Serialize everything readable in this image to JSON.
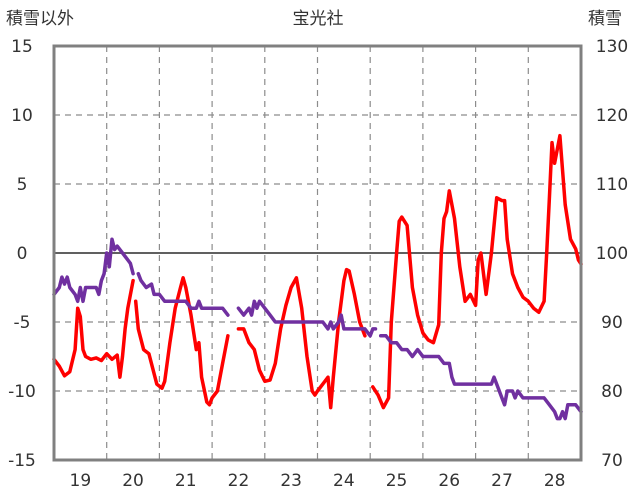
{
  "chart_data": {
    "type": "line",
    "title": "宝光社",
    "y_left_label": "積雪以外",
    "y_right_label": "積雪",
    "x_ticks": [
      "19",
      "20",
      "21",
      "22",
      "23",
      "24",
      "25",
      "26",
      "27",
      "28"
    ],
    "x_range": [
      18.5,
      28.5
    ],
    "y_left_range": [
      -15,
      15
    ],
    "y_left_ticks": [
      "15",
      "10",
      "5",
      "0",
      "-5",
      "-10",
      "-15"
    ],
    "y_right_range": [
      70,
      130
    ],
    "y_right_ticks": [
      "130",
      "120",
      "110",
      "100",
      "90",
      "80",
      "70"
    ],
    "grid": {
      "vertical": "dashed",
      "horizontal": "dashed",
      "zero_line": "solid"
    },
    "series": [
      {
        "axis": "left",
        "color": "#ff0000",
        "segments": [
          [
            [
              18.5,
              -7.7
            ],
            [
              18.6,
              -8.2
            ],
            [
              18.7,
              -8.9
            ],
            [
              18.8,
              -8.6
            ],
            [
              18.9,
              -7.0
            ],
            [
              18.95,
              -4.0
            ],
            [
              19.0,
              -4.6
            ],
            [
              19.05,
              -7.0
            ],
            [
              19.1,
              -7.5
            ],
            [
              19.2,
              -7.7
            ],
            [
              19.3,
              -7.6
            ],
            [
              19.4,
              -7.8
            ],
            [
              19.5,
              -7.3
            ],
            [
              19.6,
              -7.7
            ],
            [
              19.7,
              -7.4
            ],
            [
              19.75,
              -9.0
            ],
            [
              19.8,
              -7.5
            ],
            [
              19.85,
              -5.5
            ],
            [
              19.9,
              -4.0
            ],
            [
              20.0,
              -2.0
            ]
          ],
          [
            [
              20.05,
              -3.5
            ],
            [
              20.1,
              -5.5
            ],
            [
              20.2,
              -7.0
            ],
            [
              20.3,
              -7.3
            ],
            [
              20.45,
              -9.5
            ],
            [
              20.55,
              -9.8
            ],
            [
              20.6,
              -9.3
            ],
            [
              20.7,
              -6.5
            ],
            [
              20.8,
              -4.0
            ],
            [
              20.9,
              -2.5
            ],
            [
              20.95,
              -1.8
            ],
            [
              21.0,
              -2.5
            ],
            [
              21.1,
              -4.5
            ],
            [
              21.2,
              -7.0
            ],
            [
              21.25,
              -6.5
            ],
            [
              21.3,
              -9.0
            ],
            [
              21.4,
              -10.8
            ],
            [
              21.45,
              -11.0
            ],
            [
              21.5,
              -10.5
            ],
            [
              21.6,
              -10.0
            ],
            [
              21.7,
              -8.0
            ],
            [
              21.8,
              -6.0
            ]
          ],
          [
            [
              22.0,
              -5.5
            ],
            [
              22.1,
              -5.5
            ],
            [
              22.2,
              -6.5
            ],
            [
              22.3,
              -7.0
            ],
            [
              22.4,
              -8.5
            ],
            [
              22.5,
              -9.3
            ],
            [
              22.6,
              -9.2
            ],
            [
              22.7,
              -8.0
            ],
            [
              22.8,
              -5.5
            ],
            [
              22.9,
              -3.8
            ],
            [
              23.0,
              -2.5
            ],
            [
              23.1,
              -1.8
            ],
            [
              23.2,
              -4.0
            ],
            [
              23.3,
              -7.5
            ],
            [
              23.4,
              -10.0
            ],
            [
              23.45,
              -10.3
            ],
            [
              23.5,
              -10.0
            ],
            [
              23.6,
              -9.5
            ],
            [
              23.7,
              -9.0
            ],
            [
              23.75,
              -11.2
            ],
            [
              23.8,
              -9.0
            ],
            [
              23.9,
              -5.0
            ],
            [
              24.0,
              -2.0
            ],
            [
              24.05,
              -1.2
            ],
            [
              24.1,
              -1.3
            ],
            [
              24.2,
              -3.0
            ],
            [
              24.3,
              -5.0
            ],
            [
              24.4,
              -6.0
            ]
          ],
          [
            [
              24.55,
              -9.7
            ],
            [
              24.65,
              -10.3
            ],
            [
              24.75,
              -11.2
            ],
            [
              24.85,
              -10.5
            ],
            [
              24.9,
              -5.0
            ],
            [
              25.0,
              0.0
            ],
            [
              25.05,
              2.3
            ],
            [
              25.1,
              2.6
            ],
            [
              25.2,
              2.0
            ],
            [
              25.3,
              -2.5
            ],
            [
              25.4,
              -4.5
            ],
            [
              25.5,
              -5.8
            ],
            [
              25.6,
              -6.3
            ],
            [
              25.7,
              -6.5
            ],
            [
              25.8,
              -5.2
            ],
            [
              25.85,
              0.0
            ],
            [
              25.9,
              2.5
            ],
            [
              25.95,
              3.0
            ],
            [
              26.0,
              4.5
            ],
            [
              26.1,
              2.5
            ],
            [
              26.2,
              -1.0
            ],
            [
              26.3,
              -3.5
            ],
            [
              26.4,
              -3.0
            ],
            [
              26.5,
              -3.8
            ],
            [
              26.55,
              -0.5
            ],
            [
              26.6,
              0.0
            ],
            [
              26.7,
              -3.0
            ],
            [
              26.8,
              0.0
            ],
            [
              26.9,
              4.0
            ],
            [
              27.0,
              3.8
            ],
            [
              27.05,
              3.8
            ],
            [
              27.1,
              1.0
            ],
            [
              27.2,
              -1.5
            ],
            [
              27.3,
              -2.5
            ],
            [
              27.4,
              -3.2
            ],
            [
              27.5,
              -3.5
            ],
            [
              27.6,
              -4.0
            ],
            [
              27.7,
              -4.3
            ],
            [
              27.8,
              -3.5
            ],
            [
              27.85,
              0.0
            ],
            [
              27.9,
              4.0
            ],
            [
              27.95,
              8.0
            ],
            [
              28.0,
              6.5
            ],
            [
              28.1,
              8.5
            ],
            [
              28.2,
              3.5
            ],
            [
              28.3,
              1.0
            ],
            [
              28.4,
              0.3
            ],
            [
              28.45,
              -0.5
            ],
            [
              28.5,
              -0.8
            ]
          ]
        ]
      },
      {
        "axis": "right",
        "color": "#7030a0",
        "segments": [
          [
            [
              18.5,
              94
            ],
            [
              18.6,
              95
            ],
            [
              18.65,
              96.5
            ],
            [
              18.7,
              95.5
            ],
            [
              18.75,
              96.5
            ],
            [
              18.8,
              95
            ],
            [
              18.9,
              94
            ],
            [
              18.95,
              93
            ],
            [
              19.0,
              95
            ],
            [
              19.05,
              93
            ],
            [
              19.1,
              95
            ],
            [
              19.2,
              95
            ],
            [
              19.3,
              95
            ],
            [
              19.35,
              94
            ],
            [
              19.4,
              96
            ],
            [
              19.45,
              97
            ],
            [
              19.5,
              100
            ],
            [
              19.55,
              98
            ],
            [
              19.6,
              102
            ],
            [
              19.65,
              100.5
            ],
            [
              19.7,
              101
            ],
            [
              19.8,
              100
            ],
            [
              19.9,
              99
            ],
            [
              19.95,
              98.5
            ],
            [
              20.0,
              97
            ]
          ],
          [
            [
              20.1,
              97
            ],
            [
              20.15,
              96
            ],
            [
              20.25,
              95
            ],
            [
              20.35,
              95.5
            ],
            [
              20.4,
              94
            ],
            [
              20.5,
              94
            ],
            [
              20.6,
              93
            ],
            [
              20.7,
              93
            ],
            [
              20.8,
              93
            ],
            [
              20.9,
              93
            ],
            [
              21.0,
              93
            ],
            [
              21.1,
              92
            ],
            [
              21.2,
              92
            ],
            [
              21.25,
              93
            ],
            [
              21.3,
              92
            ],
            [
              21.4,
              92
            ],
            [
              21.5,
              92
            ],
            [
              21.6,
              92
            ],
            [
              21.7,
              92
            ],
            [
              21.8,
              91
            ]
          ],
          [
            [
              22.0,
              92
            ],
            [
              22.1,
              91
            ],
            [
              22.2,
              92
            ],
            [
              22.25,
              91
            ],
            [
              22.3,
              93
            ],
            [
              22.35,
              92
            ],
            [
              22.4,
              93
            ],
            [
              22.5,
              92
            ],
            [
              22.6,
              91
            ],
            [
              22.7,
              90
            ],
            [
              22.8,
              90
            ],
            [
              22.9,
              90
            ],
            [
              23.0,
              90
            ],
            [
              23.1,
              90
            ],
            [
              23.2,
              90
            ],
            [
              23.3,
              90
            ],
            [
              23.4,
              90
            ],
            [
              23.5,
              90
            ],
            [
              23.6,
              90
            ],
            [
              23.7,
              89
            ],
            [
              23.75,
              90
            ],
            [
              23.8,
              89
            ],
            [
              23.9,
              90
            ],
            [
              23.95,
              91
            ],
            [
              24.0,
              89
            ],
            [
              24.1,
              89
            ],
            [
              24.2,
              89
            ],
            [
              24.3,
              89
            ],
            [
              24.4,
              89
            ],
            [
              24.5,
              88
            ],
            [
              24.55,
              89
            ],
            [
              24.6,
              89
            ]
          ],
          [
            [
              24.7,
              88
            ],
            [
              24.8,
              88
            ],
            [
              24.9,
              87
            ],
            [
              25.0,
              87
            ],
            [
              25.1,
              86
            ],
            [
              25.2,
              86
            ],
            [
              25.3,
              85
            ],
            [
              25.4,
              86
            ],
            [
              25.5,
              85
            ],
            [
              25.6,
              85
            ],
            [
              25.7,
              85
            ],
            [
              25.8,
              85
            ],
            [
              25.9,
              84
            ],
            [
              26.0,
              84
            ],
            [
              26.05,
              82
            ],
            [
              26.1,
              81
            ],
            [
              26.2,
              81
            ],
            [
              26.3,
              81
            ],
            [
              26.4,
              81
            ],
            [
              26.5,
              81
            ],
            [
              26.6,
              81
            ],
            [
              26.7,
              81
            ],
            [
              26.8,
              81
            ],
            [
              26.85,
              82
            ],
            [
              26.9,
              81
            ],
            [
              27.0,
              79
            ],
            [
              27.05,
              78
            ],
            [
              27.1,
              80
            ],
            [
              27.2,
              80
            ],
            [
              27.25,
              79
            ],
            [
              27.3,
              80
            ],
            [
              27.4,
              79
            ],
            [
              27.5,
              79
            ],
            [
              27.6,
              79
            ],
            [
              27.7,
              79
            ],
            [
              27.8,
              79
            ],
            [
              27.9,
              78
            ],
            [
              28.0,
              77
            ],
            [
              28.05,
              76
            ],
            [
              28.1,
              76
            ],
            [
              28.15,
              77
            ],
            [
              28.2,
              76
            ],
            [
              28.25,
              78
            ],
            [
              28.3,
              78
            ],
            [
              28.4,
              78
            ],
            [
              28.5,
              77
            ]
          ]
        ]
      }
    ]
  }
}
